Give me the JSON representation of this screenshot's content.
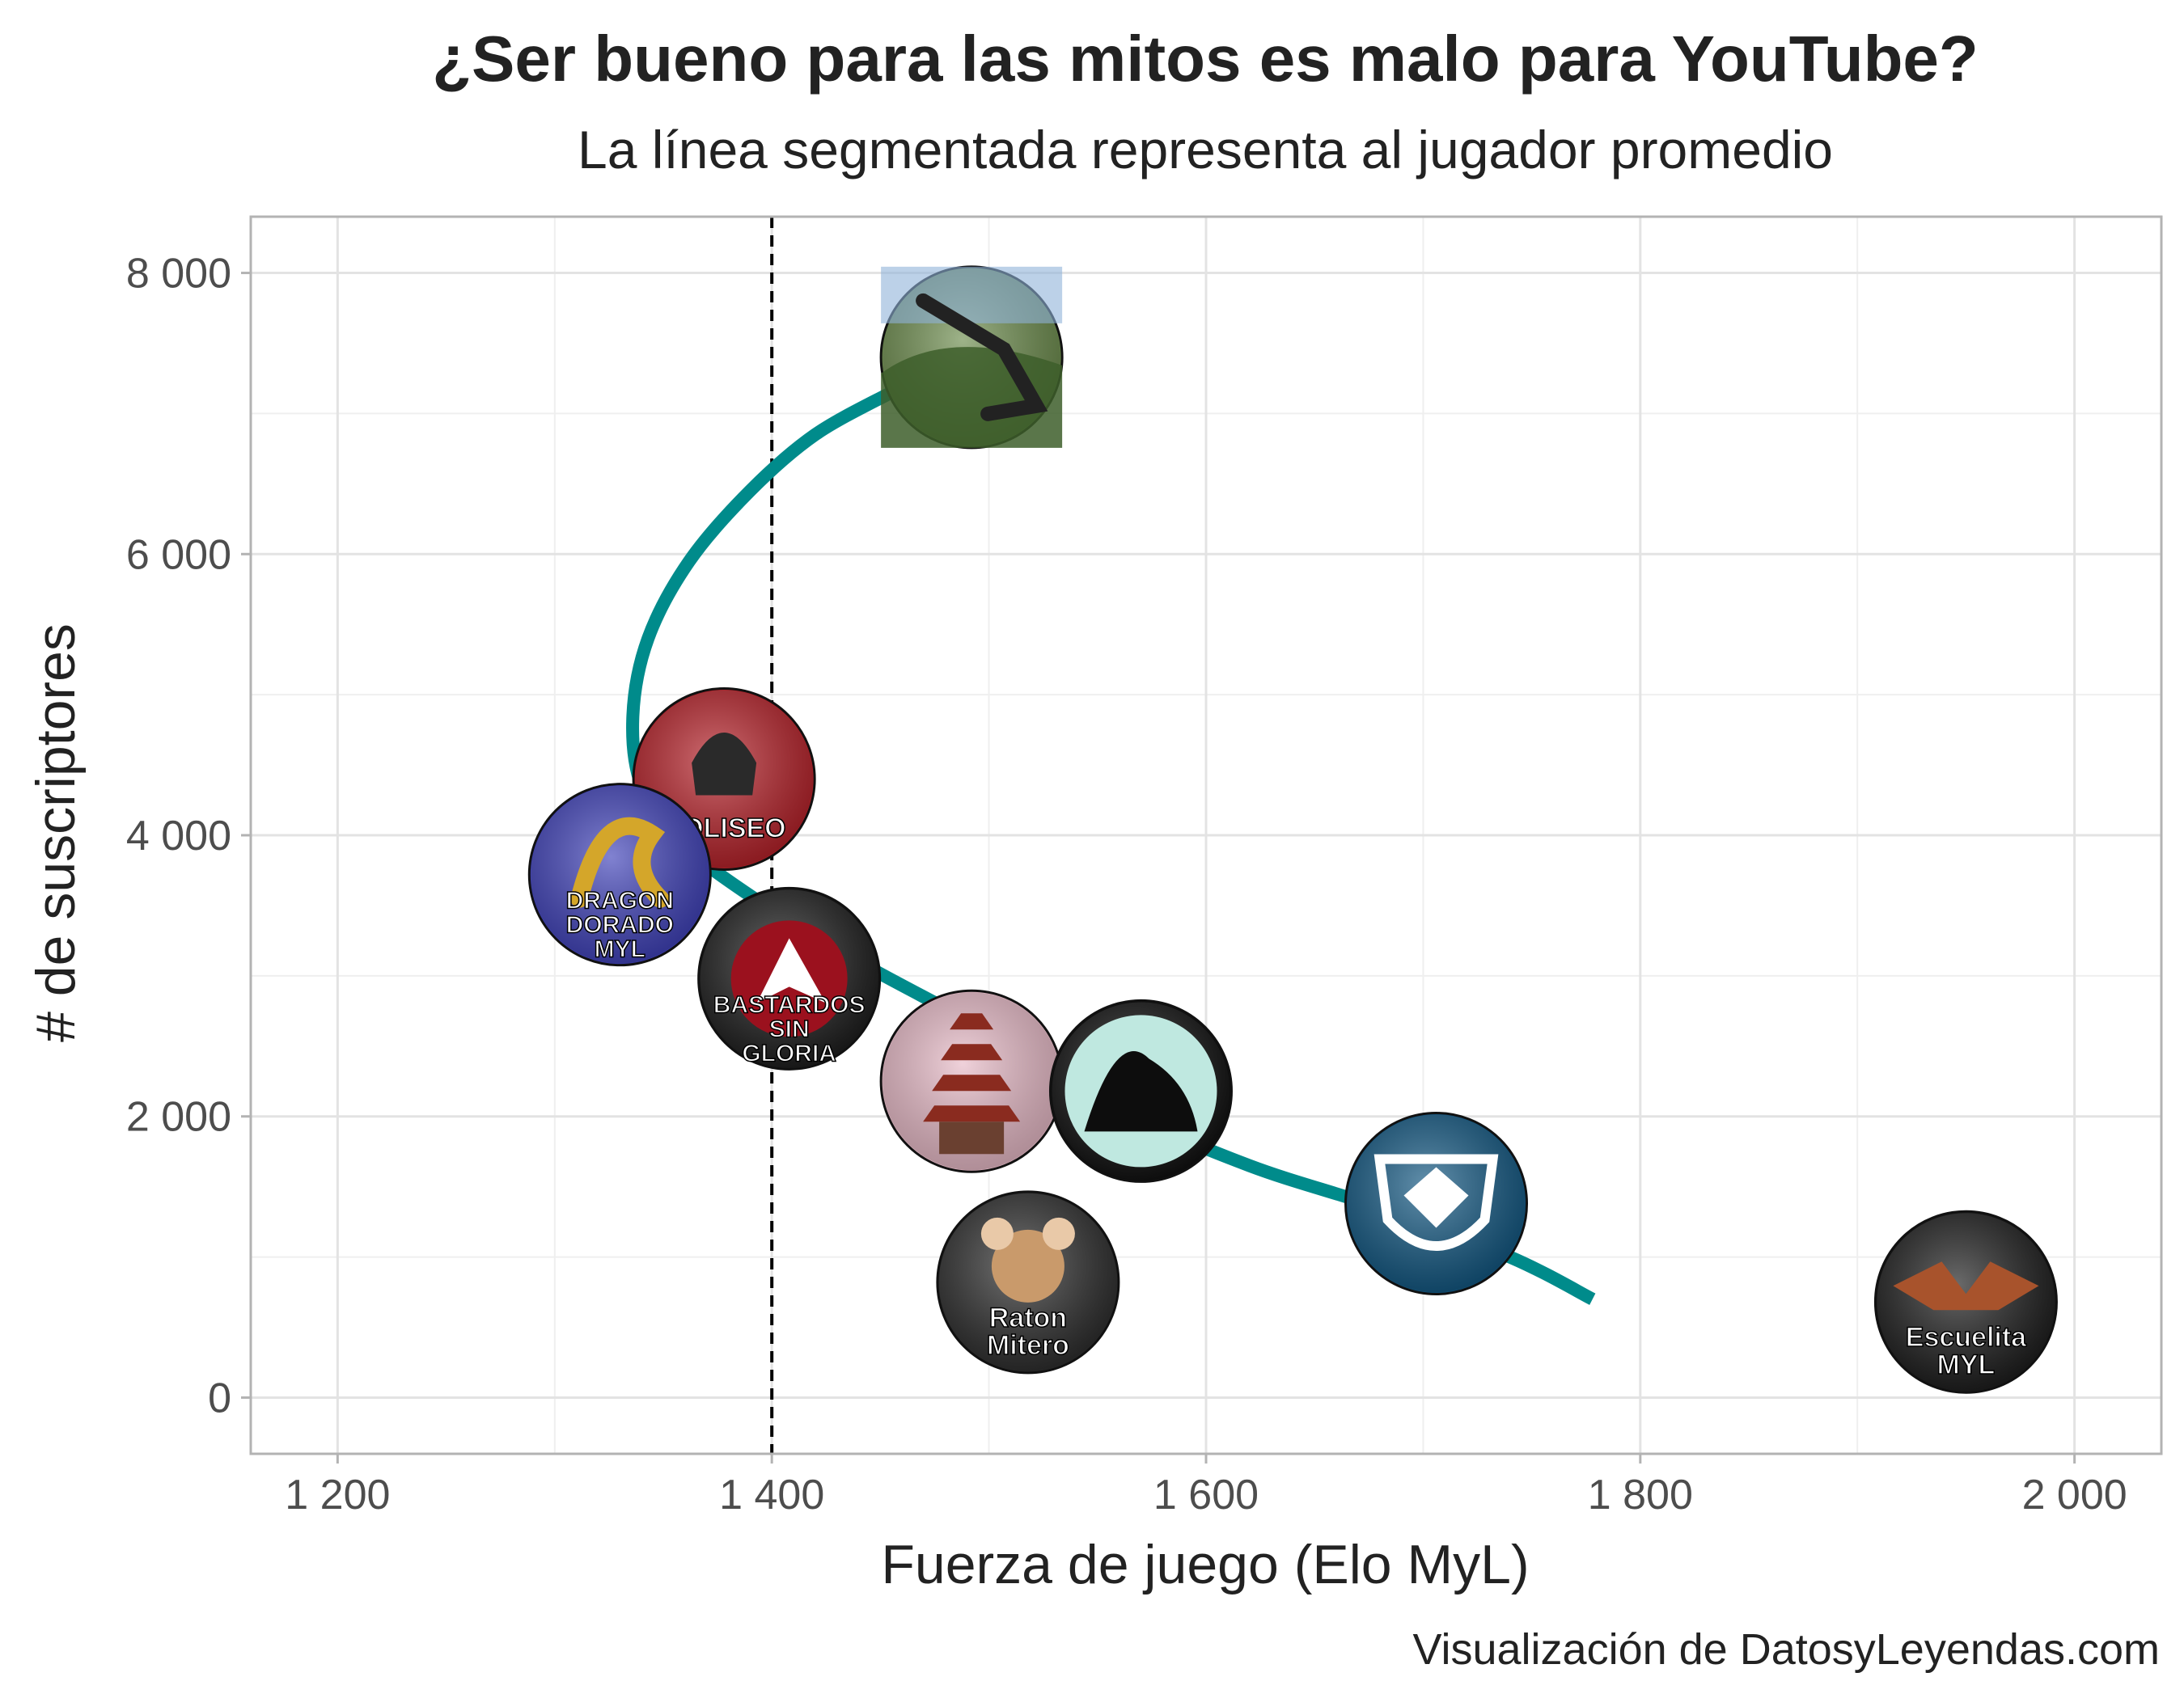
{
  "chart_data": {
    "type": "scatter",
    "title": "¿Ser bueno para las mitos es malo para YouTube?",
    "subtitle": "La línea segmentada representa al jugador promedio",
    "xlabel": "Fuerza de juego (Elo MyL)",
    "ylabel": "# de suscriptores",
    "caption": "Visualización de DatosyLeyendas.com",
    "xlim": [
      1160,
      2040
    ],
    "ylim": [
      -400,
      8400
    ],
    "x_ticks": [
      1200,
      1400,
      1600,
      1800,
      2000
    ],
    "x_tick_labels": [
      "1 200",
      "1 400",
      "1 600",
      "1 800",
      "2 000"
    ],
    "y_ticks": [
      0,
      2000,
      4000,
      6000,
      8000
    ],
    "y_tick_labels": [
      "0",
      "2 000",
      "4 000",
      "6 000",
      "8 000"
    ],
    "grid": true,
    "reference_line": {
      "x": 1400,
      "style": "dashed",
      "color": "#000000"
    },
    "trend_color": "#008b8b",
    "trend": [
      {
        "x": 1455,
        "y": 7150
      },
      {
        "x": 1420,
        "y": 6850
      },
      {
        "x": 1390,
        "y": 6450
      },
      {
        "x": 1362,
        "y": 5950
      },
      {
        "x": 1343,
        "y": 5400
      },
      {
        "x": 1336,
        "y": 4850
      },
      {
        "x": 1340,
        "y": 4350
      },
      {
        "x": 1358,
        "y": 3950
      },
      {
        "x": 1392,
        "y": 3550
      },
      {
        "x": 1440,
        "y": 3100
      },
      {
        "x": 1500,
        "y": 2600
      },
      {
        "x": 1560,
        "y": 2050
      },
      {
        "x": 1620,
        "y": 1650
      },
      {
        "x": 1680,
        "y": 1350
      },
      {
        "x": 1740,
        "y": 1000
      },
      {
        "x": 1778,
        "y": 700
      }
    ],
    "points": [
      {
        "x": 1492,
        "y": 7400,
        "logo": "landscape-photo",
        "bg": "#6a8a4a"
      },
      {
        "x": 1378,
        "y": 4400,
        "logo": "coliseo-logo",
        "bg": "#b51e26",
        "text": "COLISEO"
      },
      {
        "x": 1330,
        "y": 3720,
        "logo": "dragon-dorado-logo",
        "bg": "#3d3fb8",
        "text": "DRAGON DORADO MYL"
      },
      {
        "x": 1408,
        "y": 2980,
        "logo": "bastardos-sin-gloria-logo",
        "bg": "#1a1a1a",
        "text": "BASTARDOS SIN GLORIA"
      },
      {
        "x": 1492,
        "y": 2250,
        "logo": "pagoda-logo",
        "bg": "#e7b9c6"
      },
      {
        "x": 1570,
        "y": 2180,
        "logo": "black-dragon-logo",
        "bg": "#0d0d0d"
      },
      {
        "x": 1518,
        "y": 820,
        "logo": "raton-mitero-logo",
        "bg": "#2a2a2a",
        "text": "Raton Mitero"
      },
      {
        "x": 1706,
        "y": 1380,
        "logo": "wolf-shield-logo",
        "bg": "#0f5580"
      },
      {
        "x": 1950,
        "y": 680,
        "logo": "escuelita-myl-logo",
        "bg": "#1a1a1a",
        "text": "Escuelita MYL"
      }
    ]
  }
}
